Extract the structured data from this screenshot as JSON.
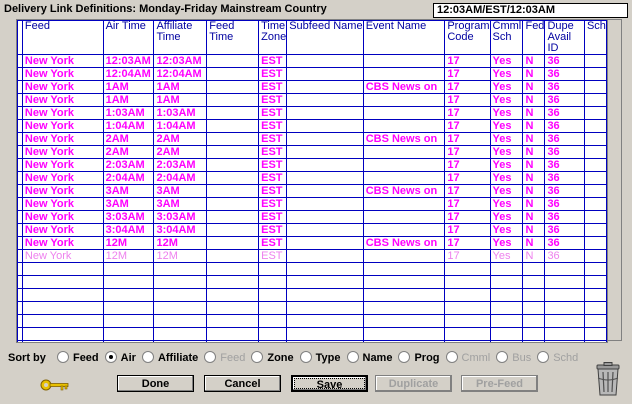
{
  "window": {
    "title": "Delivery Link Definitions: Monday-Friday Mainstream Country",
    "time_field": "12:03AM/EST/12:03AM"
  },
  "columns": [
    "Feed",
    "Air Time",
    "Affiliate Time",
    "Feed Time",
    "Time Zone",
    "Subfeed Name",
    "Event Name",
    "Program Code",
    "Cmml Sch",
    "Fed",
    "Dupe Avail ID",
    "Sch"
  ],
  "rows": [
    {
      "feed": "New York",
      "air": "12:03AM",
      "affiliate": "12:03AM",
      "feed_time": "",
      "zone": "EST",
      "subfeed": "",
      "event": "",
      "program": "17",
      "cmml": "Yes",
      "fed": "N",
      "dupe": "36",
      "sch": "",
      "style": "bold"
    },
    {
      "feed": "New York",
      "air": "12:04AM",
      "affiliate": "12:04AM",
      "feed_time": "",
      "zone": "EST",
      "subfeed": "",
      "event": "",
      "program": "17",
      "cmml": "Yes",
      "fed": "N",
      "dupe": "36",
      "sch": "",
      "style": "bold"
    },
    {
      "feed": "New York",
      "air": "1AM",
      "affiliate": "1AM",
      "feed_time": "",
      "zone": "EST",
      "subfeed": "",
      "event": "CBS News on",
      "program": "17",
      "cmml": "Yes",
      "fed": "N",
      "dupe": "36",
      "sch": "",
      "style": "bold"
    },
    {
      "feed": "New York",
      "air": "1AM",
      "affiliate": "1AM",
      "feed_time": "",
      "zone": "EST",
      "subfeed": "",
      "event": "",
      "program": "17",
      "cmml": "Yes",
      "fed": "N",
      "dupe": "36",
      "sch": "",
      "style": "bold"
    },
    {
      "feed": "New York",
      "air": "1:03AM",
      "affiliate": "1:03AM",
      "feed_time": "",
      "zone": "EST",
      "subfeed": "",
      "event": "",
      "program": "17",
      "cmml": "Yes",
      "fed": "N",
      "dupe": "36",
      "sch": "",
      "style": "bold"
    },
    {
      "feed": "New York",
      "air": "1:04AM",
      "affiliate": "1:04AM",
      "feed_time": "",
      "zone": "EST",
      "subfeed": "",
      "event": "",
      "program": "17",
      "cmml": "Yes",
      "fed": "N",
      "dupe": "36",
      "sch": "",
      "style": "bold"
    },
    {
      "feed": "New York",
      "air": "2AM",
      "affiliate": "2AM",
      "feed_time": "",
      "zone": "EST",
      "subfeed": "",
      "event": "CBS News on",
      "program": "17",
      "cmml": "Yes",
      "fed": "N",
      "dupe": "36",
      "sch": "",
      "style": "bold"
    },
    {
      "feed": "New York",
      "air": "2AM",
      "affiliate": "2AM",
      "feed_time": "",
      "zone": "EST",
      "subfeed": "",
      "event": "",
      "program": "17",
      "cmml": "Yes",
      "fed": "N",
      "dupe": "36",
      "sch": "",
      "style": "bold"
    },
    {
      "feed": "New York",
      "air": "2:03AM",
      "affiliate": "2:03AM",
      "feed_time": "",
      "zone": "EST",
      "subfeed": "",
      "event": "",
      "program": "17",
      "cmml": "Yes",
      "fed": "N",
      "dupe": "36",
      "sch": "",
      "style": "bold"
    },
    {
      "feed": "New York",
      "air": "2:04AM",
      "affiliate": "2:04AM",
      "feed_time": "",
      "zone": "EST",
      "subfeed": "",
      "event": "",
      "program": "17",
      "cmml": "Yes",
      "fed": "N",
      "dupe": "36",
      "sch": "",
      "style": "bold"
    },
    {
      "feed": "New York",
      "air": "3AM",
      "affiliate": "3AM",
      "feed_time": "",
      "zone": "EST",
      "subfeed": "",
      "event": "CBS News on",
      "program": "17",
      "cmml": "Yes",
      "fed": "N",
      "dupe": "36",
      "sch": "",
      "style": "bold"
    },
    {
      "feed": "New York",
      "air": "3AM",
      "affiliate": "3AM",
      "feed_time": "",
      "zone": "EST",
      "subfeed": "",
      "event": "",
      "program": "17",
      "cmml": "Yes",
      "fed": "N",
      "dupe": "36",
      "sch": "",
      "style": "bold"
    },
    {
      "feed": "New York",
      "air": "3:03AM",
      "affiliate": "3:03AM",
      "feed_time": "",
      "zone": "EST",
      "subfeed": "",
      "event": "",
      "program": "17",
      "cmml": "Yes",
      "fed": "N",
      "dupe": "36",
      "sch": "",
      "style": "bold"
    },
    {
      "feed": "New York",
      "air": "3:04AM",
      "affiliate": "3:04AM",
      "feed_time": "",
      "zone": "EST",
      "subfeed": "",
      "event": "",
      "program": "17",
      "cmml": "Yes",
      "fed": "N",
      "dupe": "36",
      "sch": "",
      "style": "bold"
    },
    {
      "feed": "New York",
      "air": "12M",
      "affiliate": "12M",
      "feed_time": "",
      "zone": "EST",
      "subfeed": "",
      "event": "CBS News on",
      "program": "17",
      "cmml": "Yes",
      "fed": "N",
      "dupe": "36",
      "sch": "",
      "style": "bold"
    },
    {
      "feed": "New York",
      "air": "12M",
      "affiliate": "12M",
      "feed_time": "",
      "zone": "EST",
      "subfeed": "",
      "event": "",
      "program": "17",
      "cmml": "Yes",
      "fed": "N",
      "dupe": "36",
      "sch": "",
      "style": "light"
    }
  ],
  "empty_rows": 7,
  "sort": {
    "label": "Sort by",
    "options": [
      {
        "label": "Feed",
        "selected": false,
        "enabled": true
      },
      {
        "label": "Air",
        "selected": true,
        "enabled": true
      },
      {
        "label": "Affiliate",
        "selected": false,
        "enabled": true
      },
      {
        "label": "Feed",
        "selected": false,
        "enabled": false
      },
      {
        "label": "Zone",
        "selected": false,
        "enabled": true
      },
      {
        "label": "Type",
        "selected": false,
        "enabled": true
      },
      {
        "label": "Name",
        "selected": false,
        "enabled": true
      },
      {
        "label": "Prog",
        "selected": false,
        "enabled": true
      },
      {
        "label": "Cmml",
        "selected": false,
        "enabled": false
      },
      {
        "label": "Bus",
        "selected": false,
        "enabled": false
      },
      {
        "label": "Schd",
        "selected": false,
        "enabled": false
      }
    ]
  },
  "buttons": {
    "done": "Done",
    "cancel": "Cancel",
    "save": "Save",
    "duplicate": "Duplicate",
    "pre_feed": "Pre-Feed"
  },
  "icons": {
    "key": "key-icon",
    "trash": "trash-can-icon"
  },
  "colors": {
    "grid_line": "#0000c0",
    "row_text": "#ff00ff",
    "row_text_light": "#ee82ee",
    "header_text": "#0000a0"
  }
}
